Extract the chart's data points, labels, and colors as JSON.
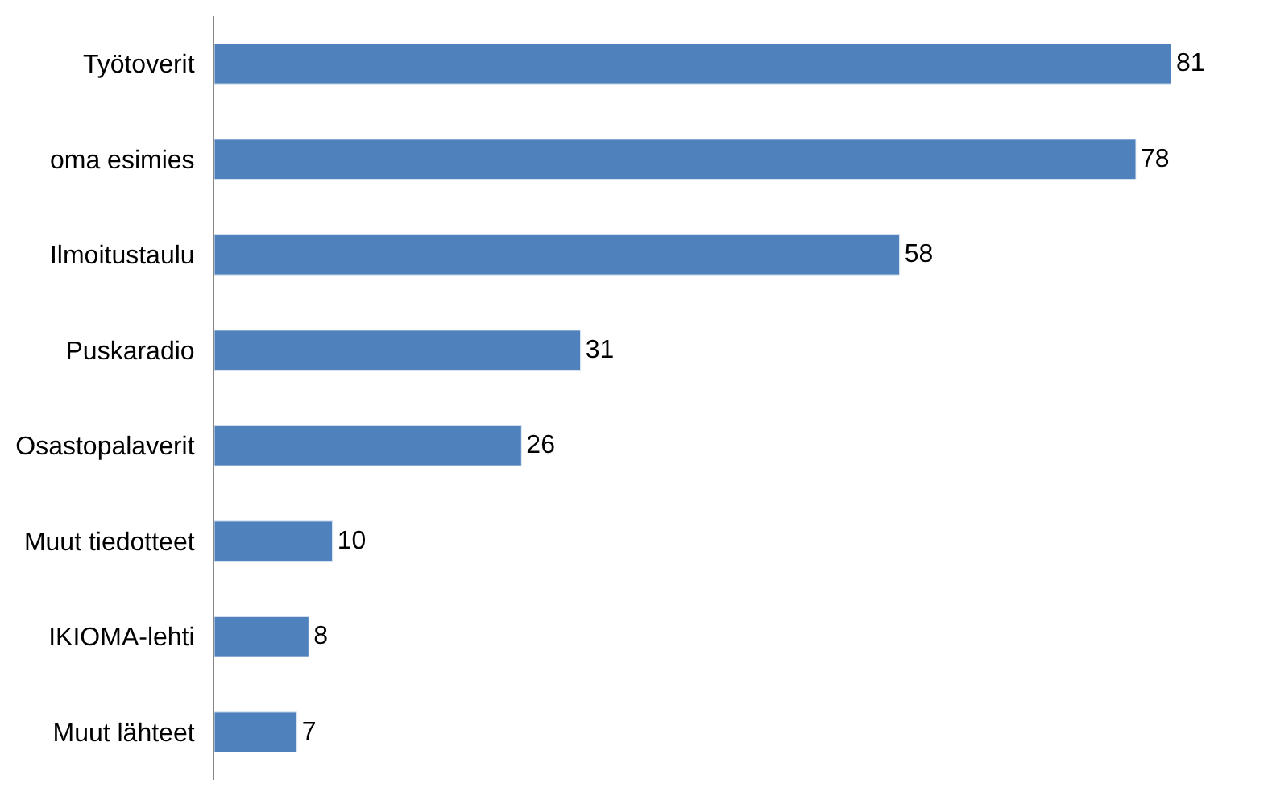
{
  "chart_data": {
    "type": "bar",
    "orientation": "horizontal",
    "categories": [
      "Työtoverit",
      "oma esimies",
      "Ilmoitustaulu",
      "Puskaradio",
      "Osastopalaverit",
      "Muut tiedotteet",
      "IKIOMA-lehti",
      "Muut lähteet"
    ],
    "values": [
      81,
      78,
      58,
      31,
      26,
      10,
      8,
      7
    ],
    "color": "#4f81bd",
    "data_labels": true
  }
}
